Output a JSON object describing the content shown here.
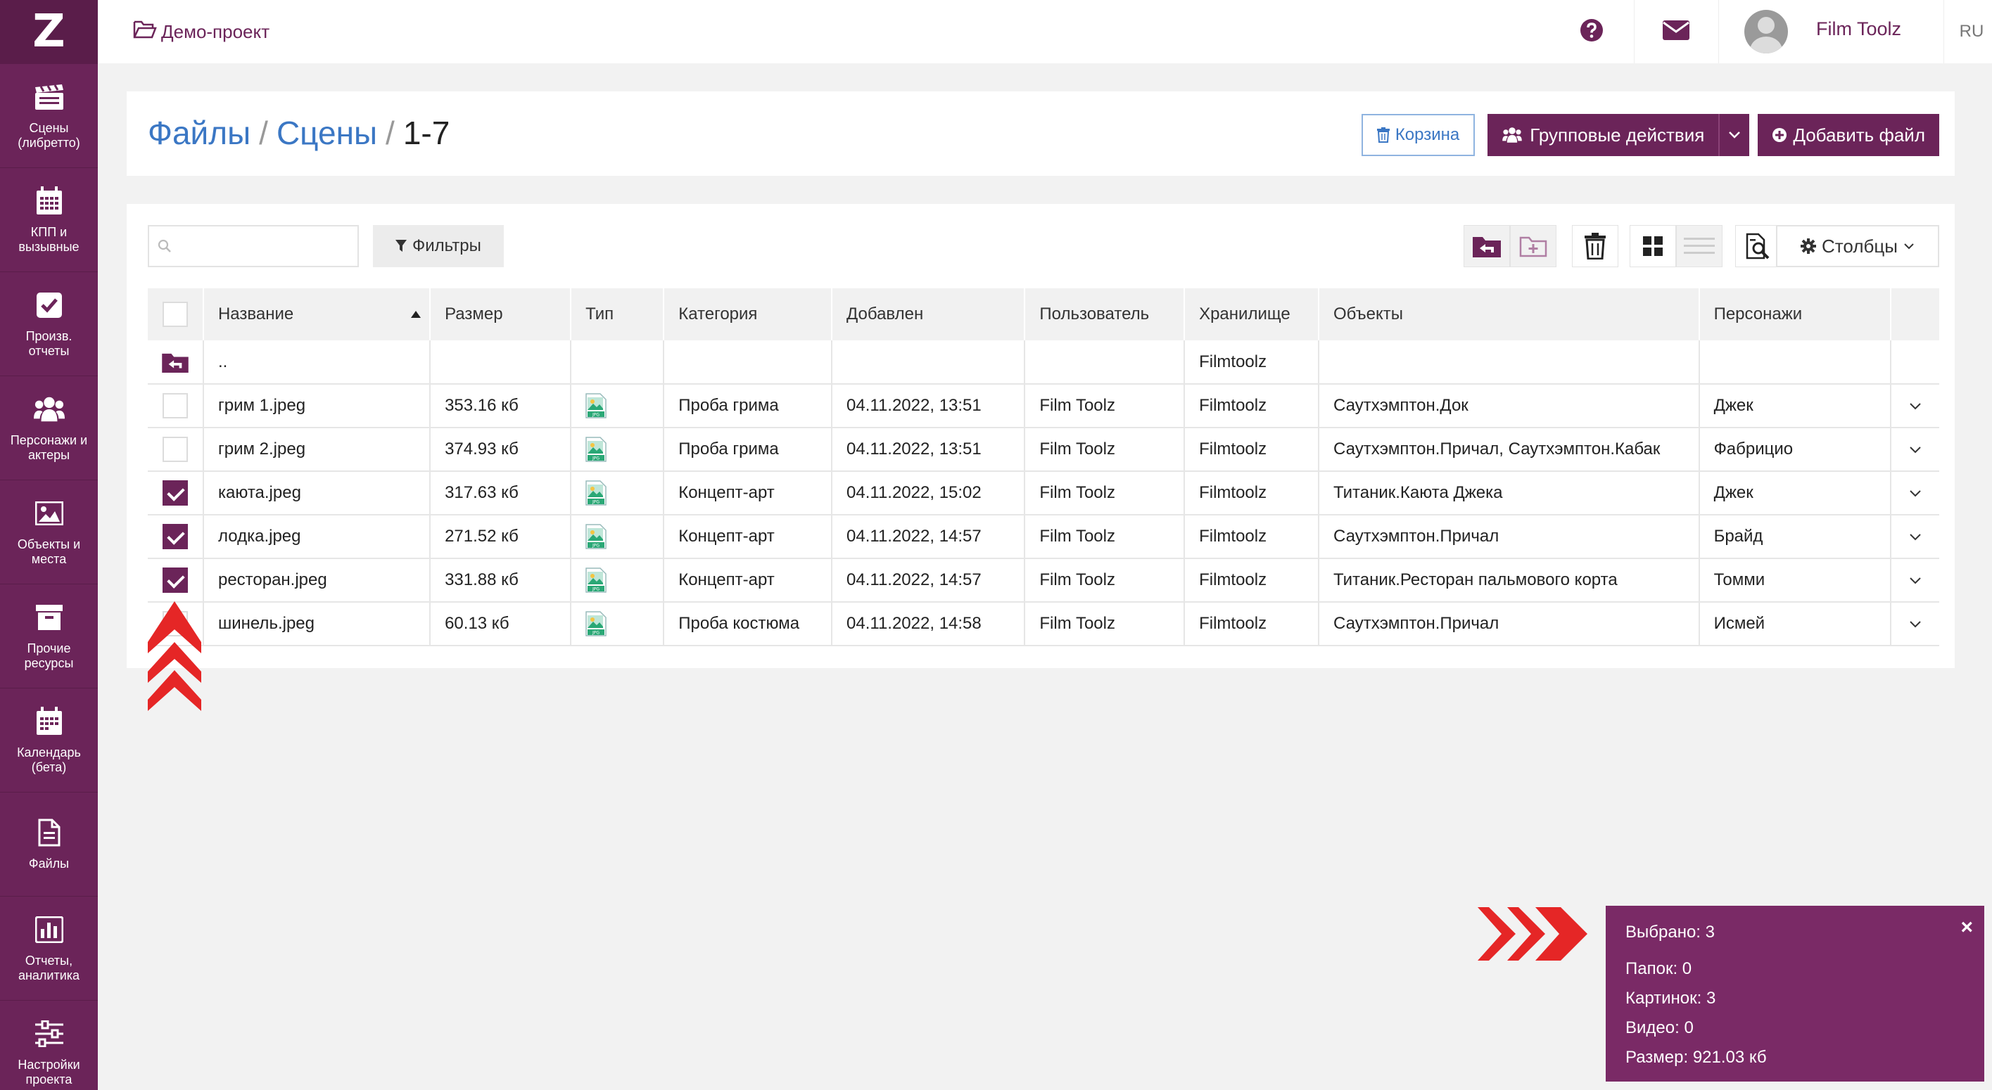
{
  "app": {
    "logo": "Z",
    "project_name": "Демо-проект",
    "user_name": "Film Toolz",
    "language": "RU"
  },
  "colors": {
    "brand": "#6b2459",
    "link": "#3b77c4",
    "alert": "#e52626"
  },
  "sidebar": {
    "items": [
      {
        "label": "Сцены (либретто)",
        "icon": "clapperboard-icon"
      },
      {
        "label": "КПП и вызывные",
        "icon": "calendar-grid-icon"
      },
      {
        "label": "Произв. отчеты",
        "icon": "checkbox-icon"
      },
      {
        "label": "Персонажи и актеры",
        "icon": "users-icon"
      },
      {
        "label": "Объекты и места",
        "icon": "image-icon"
      },
      {
        "label": "Прочие ресурсы",
        "icon": "archive-icon"
      },
      {
        "label": "Календарь (бета)",
        "icon": "calendar-icon"
      },
      {
        "label": "Файлы",
        "icon": "file-icon"
      },
      {
        "label": "Отчеты, аналитика",
        "icon": "chart-icon"
      },
      {
        "label": "Настройки проекта",
        "icon": "sliders-icon"
      }
    ]
  },
  "breadcrumb": {
    "root": "Файлы",
    "section": "Сцены",
    "current": "1-7",
    "separator": "/"
  },
  "header_buttons": {
    "trash": "Корзина",
    "group_actions": "Групповые действия",
    "add_file": "Добавить файл"
  },
  "toolbar": {
    "search_placeholder": "",
    "filters": "Фильтры",
    "columns": "Столбцы"
  },
  "table": {
    "columns": [
      "Название",
      "Размер",
      "Тип",
      "Категория",
      "Добавлен",
      "Пользователь",
      "Хранилище",
      "Объекты",
      "Персонажи"
    ],
    "parent_row": {
      "name": "..",
      "storage": "Filmtoolz"
    },
    "rows": [
      {
        "checked": false,
        "name": "грим 1.jpeg",
        "size": "353.16 кб",
        "category": "Проба грима",
        "added": "04.11.2022, 13:51",
        "user": "Film Toolz",
        "storage": "Filmtoolz",
        "objects": "Саутхэмптон.Док",
        "characters": "Джек"
      },
      {
        "checked": false,
        "name": "грим 2.jpeg",
        "size": "374.93 кб",
        "category": "Проба грима",
        "added": "04.11.2022, 13:51",
        "user": "Film Toolz",
        "storage": "Filmtoolz",
        "objects": "Саутхэмптон.Причал, Саутхэмптон.Кабак",
        "characters": "Фабрицио"
      },
      {
        "checked": true,
        "name": "каюта.jpeg",
        "size": "317.63 кб",
        "category": "Концепт-арт",
        "added": "04.11.2022, 15:02",
        "user": "Film Toolz",
        "storage": "Filmtoolz",
        "objects": "Титаник.Каюта Джека",
        "characters": "Джек"
      },
      {
        "checked": true,
        "name": "лодка.jpeg",
        "size": "271.52 кб",
        "category": "Концепт-арт",
        "added": "04.11.2022, 14:57",
        "user": "Film Toolz",
        "storage": "Filmtoolz",
        "objects": "Саутхэмптон.Причал",
        "characters": "Брайд"
      },
      {
        "checked": true,
        "name": "ресторан.jpeg",
        "size": "331.88 кб",
        "category": "Концепт-арт",
        "added": "04.11.2022, 14:57",
        "user": "Film Toolz",
        "storage": "Filmtoolz",
        "objects": "Титаник.Ресторан пальмового корта",
        "characters": "Томми"
      },
      {
        "checked": false,
        "name": "шинель.jpeg",
        "size": "60.13 кб",
        "category": "Проба костюма",
        "added": "04.11.2022, 14:58",
        "user": "Film Toolz",
        "storage": "Filmtoolz",
        "objects": "Саутхэмптон.Причал",
        "characters": "Исмей"
      }
    ]
  },
  "selection_popup": {
    "selected": "Выбрано: 3",
    "folders": "Папок: 0",
    "images": "Картинок: 3",
    "videos": "Видео: 0",
    "size": "Размер: 921.03 кб",
    "close": "×"
  }
}
